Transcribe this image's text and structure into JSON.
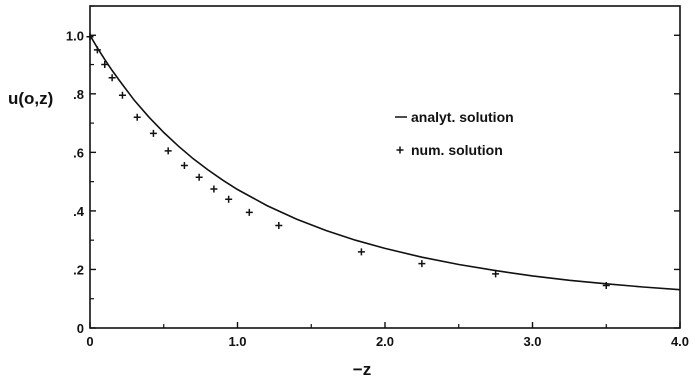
{
  "chart_data": {
    "type": "line",
    "title": "",
    "xlabel": "−z",
    "ylabel": "u(o,z)",
    "xlim": [
      0,
      4.0
    ],
    "ylim": [
      0,
      1.1
    ],
    "grid": false,
    "legend_position": "center-right",
    "x_ticks": [
      {
        "value": 0,
        "label": "0"
      },
      {
        "value": 1.0,
        "label": "1.0"
      },
      {
        "value": 2.0,
        "label": "2.0"
      },
      {
        "value": 3.0,
        "label": "3.0"
      },
      {
        "value": 4.0,
        "label": "4.0"
      }
    ],
    "y_ticks": [
      {
        "value": 0,
        "label": "0"
      },
      {
        "value": 0.2,
        "label": ".2"
      },
      {
        "value": 0.4,
        "label": ".4"
      },
      {
        "value": 0.6,
        "label": ".6"
      },
      {
        "value": 0.8,
        "label": ".8"
      },
      {
        "value": 1.0,
        "label": "1.0"
      }
    ],
    "series": [
      {
        "name": "analyt. solution",
        "style": "line",
        "color": "#111111",
        "x": [
          0,
          0.05,
          0.1,
          0.15,
          0.2,
          0.3,
          0.4,
          0.5,
          0.6,
          0.7,
          0.8,
          0.9,
          1.0,
          1.2,
          1.4,
          1.6,
          1.8,
          2.0,
          2.25,
          2.5,
          2.75,
          3.0,
          3.25,
          3.5,
          3.75,
          4.0
        ],
        "y": [
          1.0,
          0.957,
          0.917,
          0.88,
          0.845,
          0.778,
          0.72,
          0.668,
          0.621,
          0.578,
          0.54,
          0.505,
          0.473,
          0.418,
          0.372,
          0.333,
          0.3,
          0.272,
          0.242,
          0.217,
          0.196,
          0.178,
          0.163,
          0.151,
          0.14,
          0.131
        ]
      },
      {
        "name": "num. solution",
        "style": "marker",
        "marker": "+",
        "color": "#111111",
        "x": [
          0,
          0.05,
          0.1,
          0.15,
          0.22,
          0.32,
          0.43,
          0.53,
          0.64,
          0.74,
          0.84,
          0.94,
          1.08,
          1.28,
          1.84,
          2.25,
          2.75,
          3.5
        ],
        "y": [
          0.995,
          0.95,
          0.9,
          0.855,
          0.795,
          0.72,
          0.665,
          0.605,
          0.555,
          0.515,
          0.475,
          0.44,
          0.395,
          0.35,
          0.26,
          0.22,
          0.185,
          0.145
        ]
      }
    ]
  }
}
